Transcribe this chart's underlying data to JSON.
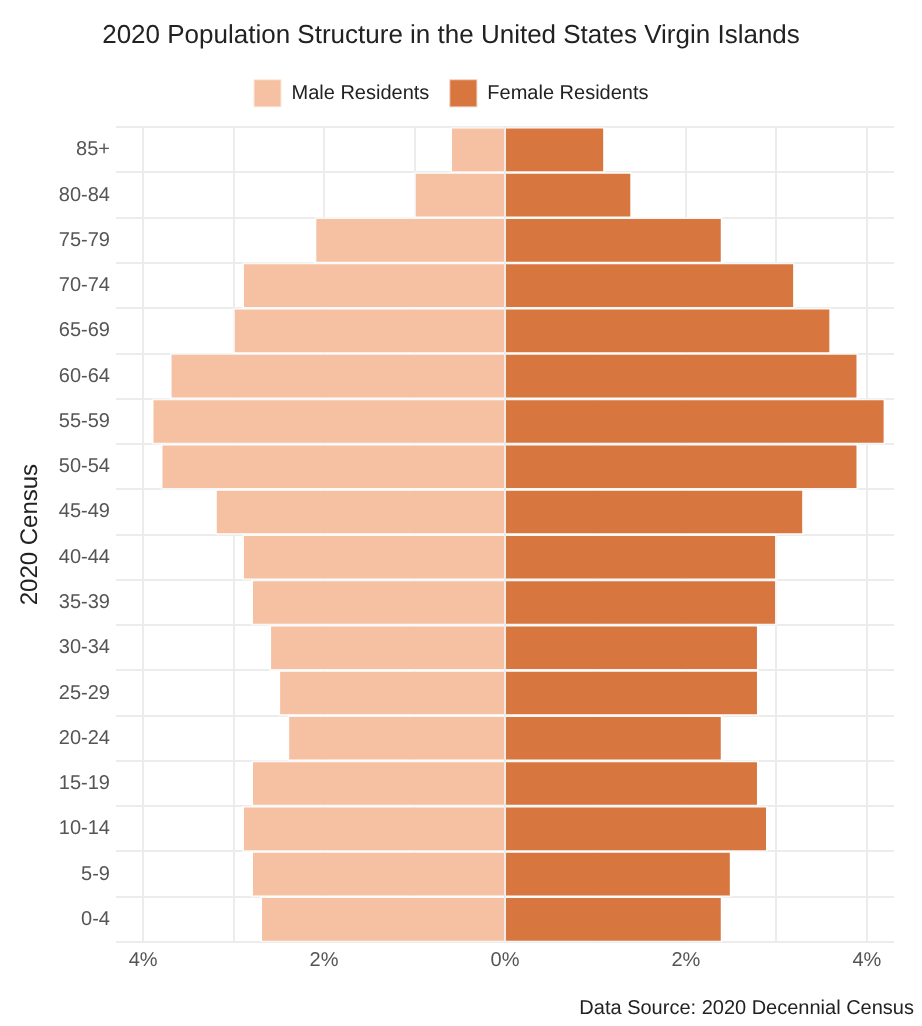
{
  "chart_data": {
    "type": "bar",
    "orientation": "horizontal",
    "stacked": true,
    "title": "2020 Population Structure in the United States Virgin Islands",
    "ylabel": "2020 Census",
    "categories": [
      "85+",
      "80-84",
      "75-79",
      "70-74",
      "65-69",
      "60-64",
      "55-59",
      "50-54",
      "45-49",
      "40-44",
      "35-39",
      "30-34",
      "25-29",
      "20-24",
      "15-19",
      "10-14",
      "5-9",
      "0-4"
    ],
    "series": [
      {
        "name": "Male Residents",
        "color": "#f5c1a2",
        "values": [
          -0.6,
          -1.0,
          -2.1,
          -2.9,
          -3.0,
          -3.7,
          -3.9,
          -3.8,
          -3.2,
          -2.9,
          -2.8,
          -2.6,
          -2.5,
          -2.4,
          -2.8,
          -2.9,
          -2.8,
          -2.7
        ]
      },
      {
        "name": "Female Residents",
        "color": "#d8763f",
        "values": [
          1.1,
          1.4,
          2.4,
          3.2,
          3.6,
          3.9,
          4.2,
          3.9,
          3.3,
          3.0,
          3.0,
          2.8,
          2.8,
          2.4,
          2.8,
          2.9,
          2.5,
          2.4
        ]
      }
    ],
    "xlim": [
      -4.3,
      4.3
    ],
    "xticks": [
      {
        "value": -4,
        "label": "4%"
      },
      {
        "value": -3,
        "label": null
      },
      {
        "value": -2,
        "label": "2%"
      },
      {
        "value": -1,
        "label": null
      },
      {
        "value": 0,
        "label": "0%"
      },
      {
        "value": 1,
        "label": null
      },
      {
        "value": 2,
        "label": "2%"
      },
      {
        "value": 3,
        "label": null
      },
      {
        "value": 4,
        "label": "4%"
      }
    ],
    "grid": true,
    "legend": "top",
    "annotations": [
      "Data Source: 2020 Decennial Census"
    ]
  }
}
